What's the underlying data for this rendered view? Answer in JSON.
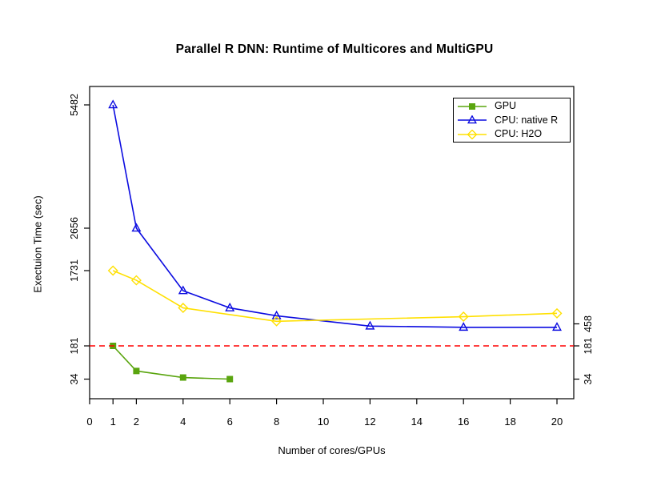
{
  "chart_data": {
    "type": "line",
    "title": "Parallel R DNN: Runtime of Multicores and MultiGPU",
    "xlabel": "Number of cores/GPUs",
    "ylabel": "Exectuion Time (sec)",
    "x_ticks": [
      0,
      1,
      2,
      4,
      6,
      8,
      10,
      12,
      14,
      16,
      18,
      20
    ],
    "y_ticks_left": [
      5482,
      2656,
      1731,
      181,
      34
    ],
    "y_ticks_right": [
      458,
      181,
      34
    ],
    "y_scale": "custom-nonlinear",
    "grid": false,
    "reference_line": {
      "y": 181,
      "color": "#ff0000",
      "style": "dashed"
    },
    "legend_position": "top-right",
    "series": [
      {
        "name": "GPU",
        "color": "#5aa50f",
        "marker": "filled-square",
        "x": [
          1,
          2,
          4,
          6
        ],
        "y": [
          181,
          70,
          41,
          34
        ]
      },
      {
        "name": "CPU: native R",
        "color": "#0b0be0",
        "marker": "open-triangle-up",
        "x": [
          1,
          2,
          4,
          6,
          8,
          12,
          16,
          20
        ],
        "y": [
          5482,
          2656,
          1250,
          840,
          650,
          430,
          415,
          415
        ]
      },
      {
        "name": "CPU: H2O",
        "color": "#ffe000",
        "marker": "open-diamond",
        "x": [
          1,
          2,
          4,
          8,
          16,
          20
        ],
        "y": [
          1731,
          1500,
          840,
          520,
          630,
          710
        ]
      }
    ]
  }
}
